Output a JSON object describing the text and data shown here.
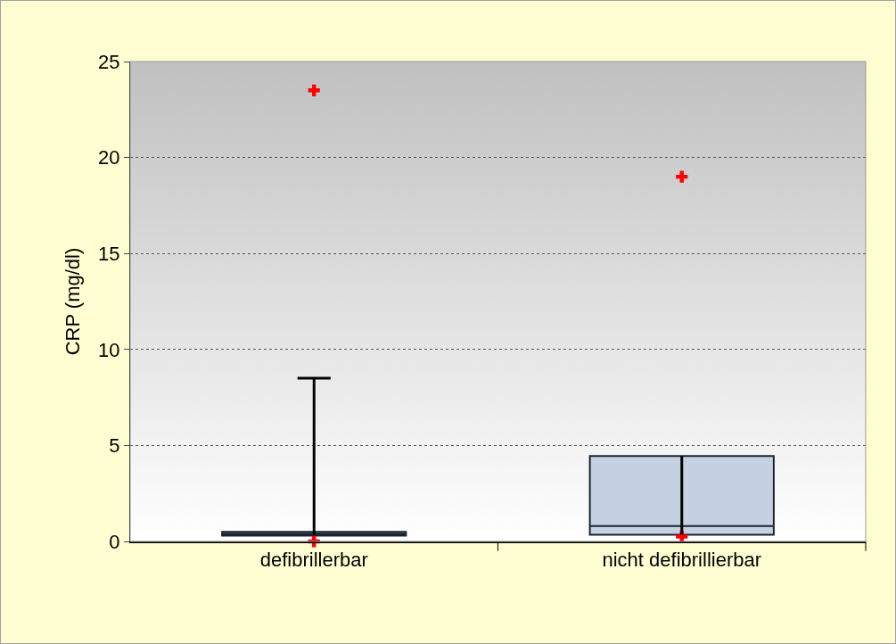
{
  "chart_data": {
    "type": "box",
    "ylabel": "CRP (mg/dl)",
    "categories": [
      "defibrillerbar",
      "nicht defibrillierbar"
    ],
    "boxes": [
      {
        "low": 0.3,
        "q1": 0.3,
        "median": 0.4,
        "q3": 0.5,
        "high": 8.5,
        "outliers": [
          0,
          23.5
        ]
      },
      {
        "low": 0.35,
        "q1": 0.35,
        "median": 0.8,
        "q3": 4.45,
        "high": 4.45,
        "outliers": [
          0.25,
          19
        ]
      }
    ],
    "color": "#c5d0e0",
    "ylim": [
      0,
      25
    ],
    "yticks": [
      0,
      5,
      10,
      15,
      20,
      25
    ],
    "grid": "y",
    "marker": "cross"
  }
}
